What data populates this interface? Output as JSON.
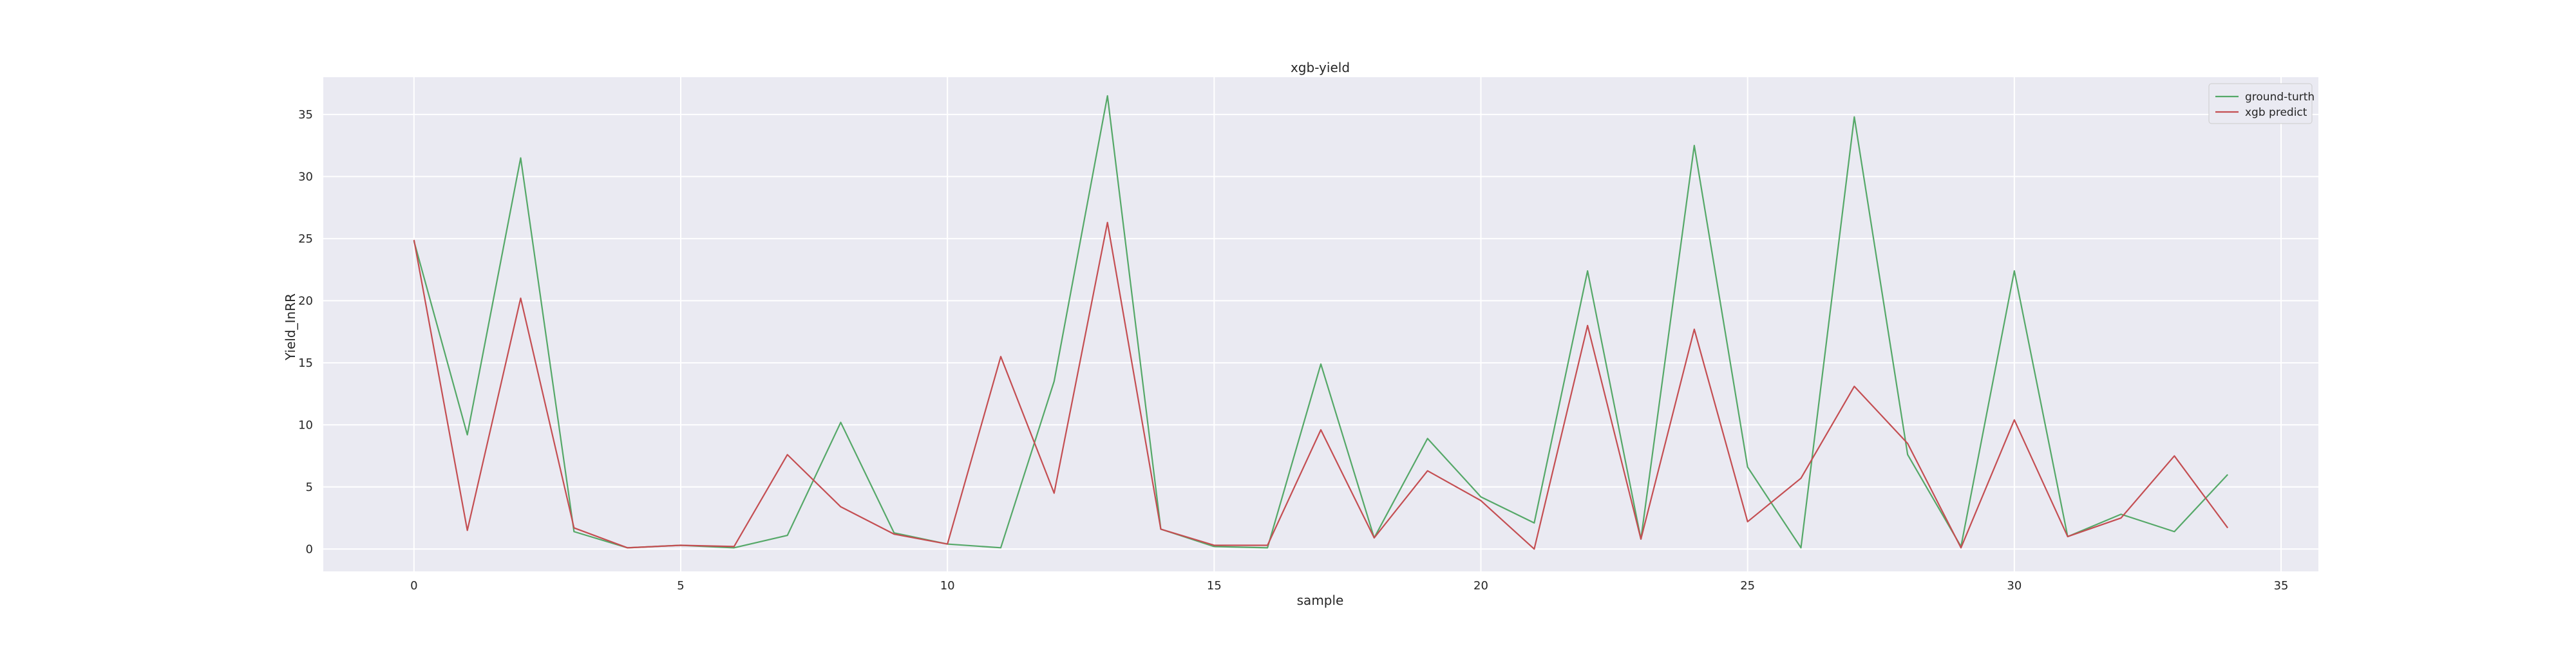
{
  "chart_data": {
    "type": "line",
    "title": "xgb-yield",
    "xlabel": "sample",
    "ylabel": "Yield_InRR",
    "xlim": [
      -1.7,
      35.7
    ],
    "ylim": [
      -1.8,
      38.0
    ],
    "xticks": [
      0,
      5,
      10,
      15,
      20,
      25,
      30,
      35
    ],
    "yticks": [
      0,
      5,
      10,
      15,
      20,
      25,
      30,
      35
    ],
    "grid": true,
    "legend_position": "top-right",
    "x": [
      0,
      1,
      2,
      3,
      4,
      5,
      6,
      7,
      8,
      9,
      10,
      11,
      12,
      13,
      14,
      15,
      16,
      17,
      18,
      19,
      20,
      21,
      22,
      23,
      24,
      25,
      26,
      27,
      28,
      29,
      30,
      31,
      32,
      33,
      34
    ],
    "series": [
      {
        "name": "ground-turth",
        "color": "#55a868",
        "values": [
          24.8,
          9.2,
          31.5,
          1.4,
          0.1,
          0.3,
          0.1,
          1.1,
          10.2,
          1.3,
          0.4,
          0.1,
          13.5,
          36.5,
          1.6,
          0.2,
          0.1,
          14.9,
          0.9,
          8.9,
          4.2,
          2.1,
          22.4,
          0.8,
          32.5,
          6.6,
          0.1,
          34.8,
          7.6,
          0.2,
          22.4,
          1.0,
          2.8,
          1.4,
          6.0
        ]
      },
      {
        "name": "xgb predict",
        "color": "#c44e52",
        "values": [
          24.9,
          1.5,
          20.2,
          1.7,
          0.1,
          0.3,
          0.2,
          7.6,
          3.4,
          1.2,
          0.4,
          15.5,
          4.5,
          26.3,
          1.6,
          0.3,
          0.3,
          9.6,
          0.9,
          6.3,
          3.9,
          0.0,
          18.0,
          0.8,
          17.7,
          2.2,
          5.7,
          13.1,
          8.5,
          0.1,
          10.4,
          1.0,
          2.5,
          7.5,
          1.7
        ]
      }
    ]
  }
}
